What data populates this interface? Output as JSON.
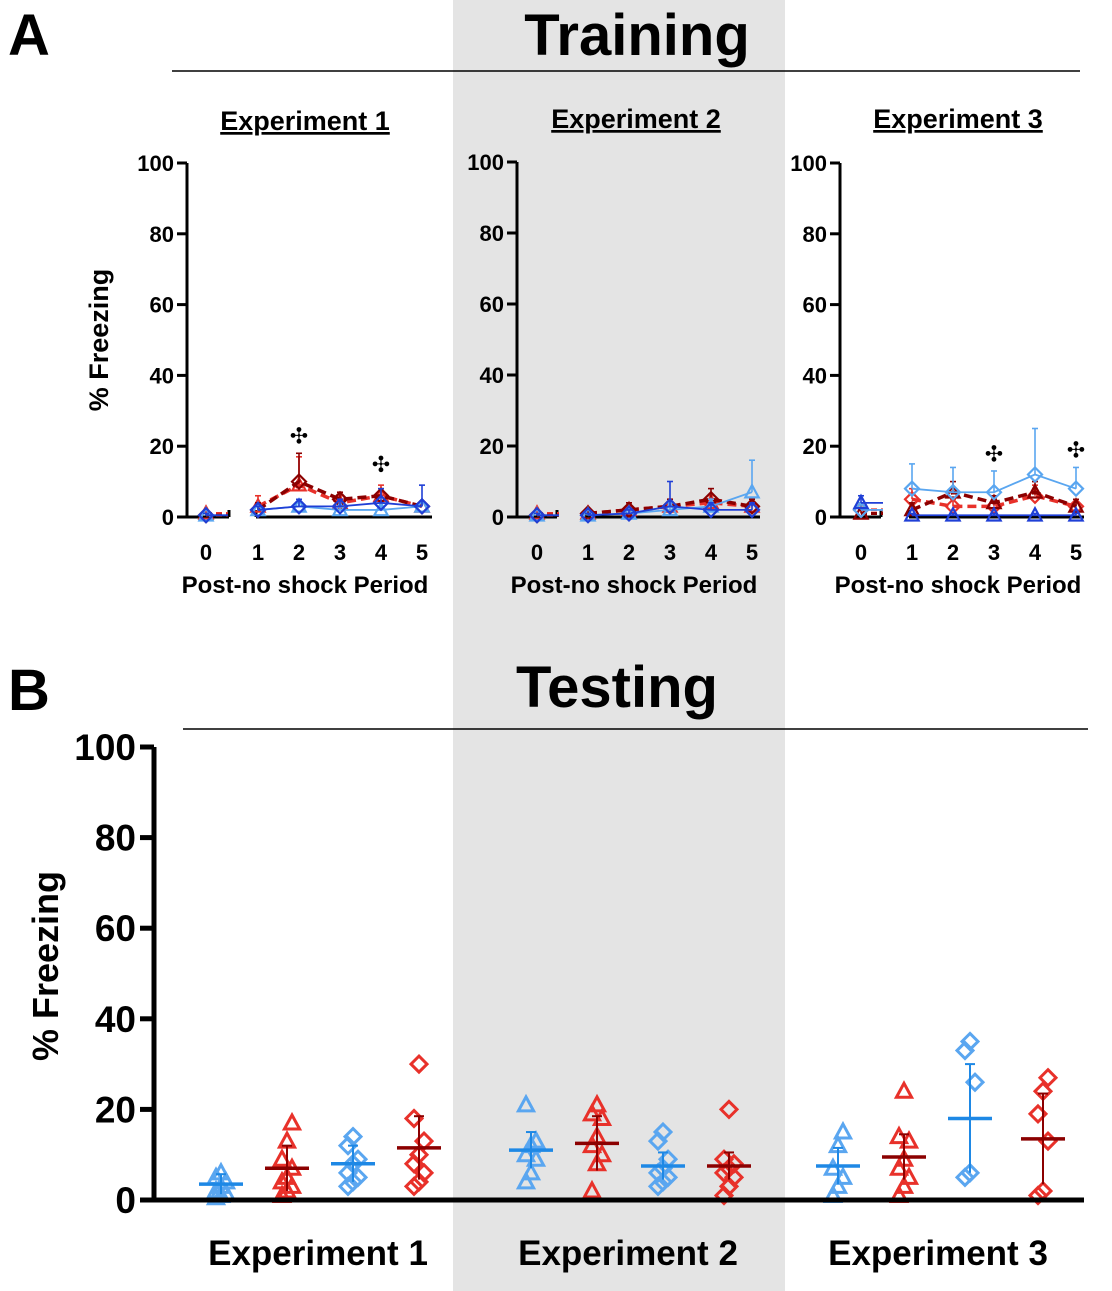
{
  "figure": {
    "panel_a_letter": "A",
    "panel_b_letter": "B",
    "shade_color": "#e4e4e4"
  },
  "chart_data": [
    {
      "type": "line",
      "panel": "A",
      "title": "Training",
      "subtitle": "Experiment 1",
      "xlabel": "Post-no shock Period",
      "ylabel": "% Freezing",
      "ylim": [
        0,
        100
      ],
      "yticks": [
        0,
        20,
        40,
        60,
        80,
        100
      ],
      "x": [
        0,
        1,
        2,
        3,
        4,
        5
      ],
      "annotations": [
        {
          "x": 2,
          "y": 23,
          "text": "✣"
        },
        {
          "x": 4,
          "y": 15,
          "text": "✣"
        }
      ],
      "series": [
        {
          "color": "#e8312a",
          "marker": "triangle",
          "dash": true,
          "values": [
            1,
            3,
            9,
            4,
            6,
            3
          ],
          "err": [
            0.5,
            3,
            8,
            2,
            3,
            1
          ]
        },
        {
          "color": "#8b0000",
          "marker": "diamond",
          "dash": true,
          "values": [
            0.5,
            2,
            10,
            5,
            6,
            3
          ],
          "err": [
            0.5,
            2,
            8,
            2,
            2,
            1
          ]
        },
        {
          "color": "#5aa6f0",
          "marker": "triangle",
          "dash": false,
          "values": [
            0.5,
            2,
            3,
            2,
            2,
            3
          ],
          "err": [
            0.5,
            1,
            2,
            1,
            1,
            1
          ]
        },
        {
          "color": "#1f3fd6",
          "marker": "diamond",
          "dash": false,
          "values": [
            0.5,
            2,
            3,
            3,
            4,
            3
          ],
          "err": [
            0.5,
            1,
            2,
            2,
            4,
            6
          ]
        }
      ]
    },
    {
      "type": "line",
      "panel": "A",
      "subtitle": "Experiment 2",
      "xlabel": "Post-no shock Period",
      "ylim": [
        0,
        100
      ],
      "yticks": [
        0,
        20,
        40,
        60,
        80,
        100
      ],
      "x": [
        0,
        1,
        2,
        3,
        4,
        5
      ],
      "annotations": [],
      "series": [
        {
          "color": "#e8312a",
          "marker": "triangle",
          "dash": true,
          "values": [
            1,
            1,
            2,
            3,
            4,
            3
          ],
          "err": [
            0.5,
            1,
            2,
            2,
            2,
            2
          ]
        },
        {
          "color": "#8b0000",
          "marker": "diamond",
          "dash": true,
          "values": [
            0.5,
            1,
            2,
            3,
            5,
            3
          ],
          "err": [
            0.5,
            1,
            2,
            2,
            3,
            2
          ]
        },
        {
          "color": "#5aa6f0",
          "marker": "triangle",
          "dash": false,
          "values": [
            0.5,
            0.5,
            1,
            2,
            3,
            7
          ],
          "err": [
            0.5,
            0.5,
            1,
            2,
            2,
            9
          ]
        },
        {
          "color": "#1f3fd6",
          "marker": "diamond",
          "dash": false,
          "values": [
            0.5,
            0.5,
            1,
            3,
            2,
            2
          ],
          "err": [
            0.5,
            0.5,
            1,
            7,
            2,
            2
          ]
        }
      ]
    },
    {
      "type": "line",
      "panel": "A",
      "subtitle": "Experiment 3",
      "xlabel": "Post-no shock Period",
      "ylim": [
        0,
        100
      ],
      "yticks": [
        0,
        20,
        40,
        60,
        80,
        100
      ],
      "x": [
        0,
        1,
        2,
        3,
        4,
        5
      ],
      "annotations": [
        {
          "x": 3,
          "y": 18,
          "text": "✣"
        },
        {
          "x": 5,
          "y": 19,
          "text": "✣"
        }
      ],
      "series": [
        {
          "color": "#e8312a",
          "marker": "diamond",
          "dash": true,
          "values": [
            2,
            5,
            3,
            3,
            6,
            3
          ],
          "err": [
            2,
            3,
            2,
            2,
            3,
            2
          ]
        },
        {
          "color": "#8b0000",
          "marker": "triangle",
          "dash": true,
          "values": [
            1,
            2,
            7,
            4,
            7,
            3
          ],
          "err": [
            1,
            2,
            3,
            2,
            3,
            2
          ]
        },
        {
          "color": "#5aa6f0",
          "marker": "diamond",
          "dash": false,
          "values": [
            2,
            8,
            7,
            7,
            12,
            8
          ],
          "err": [
            2,
            7,
            7,
            6,
            13,
            6
          ]
        },
        {
          "color": "#1f3fd6",
          "marker": "triangle",
          "dash": false,
          "values": [
            4,
            0.5,
            0.5,
            0.5,
            0.5,
            0.5
          ],
          "err": [
            2,
            0.5,
            0.5,
            0.5,
            0.5,
            0.5
          ]
        }
      ]
    },
    {
      "type": "scatter",
      "panel": "B",
      "title": "Testing",
      "ylabel": "% Freezing",
      "ylim": [
        0,
        100
      ],
      "yticks": [
        0,
        20,
        40,
        60,
        80,
        100
      ],
      "categories": [
        "Experiment 1",
        "Experiment 2",
        "Experiment 3"
      ],
      "groups": [
        {
          "experiment": 0,
          "slot": 0,
          "color": "#1e88e5",
          "pointColor": "#5aa6f0",
          "marker": "triangle",
          "mean": 3.5,
          "sd": 2.2,
          "points": [
            0.5,
            1,
            1.5,
            2,
            3,
            4,
            5,
            6
          ]
        },
        {
          "experiment": 0,
          "slot": 1,
          "color": "#8b0000",
          "pointColor": "#e8312a",
          "marker": "triangle",
          "mean": 7,
          "sd": 5,
          "points": [
            1,
            2,
            3,
            4,
            5,
            7,
            9,
            13,
            17
          ]
        },
        {
          "experiment": 0,
          "slot": 2,
          "color": "#1e88e5",
          "pointColor": "#5aa6f0",
          "marker": "diamond",
          "mean": 8,
          "sd": 4,
          "points": [
            3,
            4,
            5,
            6,
            8,
            9,
            12,
            14
          ]
        },
        {
          "experiment": 0,
          "slot": 3,
          "color": "#8b0000",
          "pointColor": "#e8312a",
          "marker": "diamond",
          "mean": 11.5,
          "sd": 7,
          "points": [
            3,
            4,
            6,
            8,
            10,
            13,
            18,
            30
          ]
        },
        {
          "experiment": 1,
          "slot": 0,
          "color": "#1e88e5",
          "pointColor": "#5aa6f0",
          "marker": "triangle",
          "mean": 11,
          "sd": 4,
          "points": [
            4,
            6,
            9,
            10,
            12,
            13,
            21
          ]
        },
        {
          "experiment": 1,
          "slot": 1,
          "color": "#8b0000",
          "pointColor": "#e8312a",
          "marker": "triangle",
          "mean": 12.5,
          "sd": 6,
          "points": [
            2,
            8,
            10,
            12,
            14,
            18,
            19,
            21
          ]
        },
        {
          "experiment": 1,
          "slot": 2,
          "color": "#1e88e5",
          "pointColor": "#5aa6f0",
          "marker": "diamond",
          "mean": 7.5,
          "sd": 3,
          "points": [
            3,
            4,
            5,
            6,
            7,
            9,
            13,
            15
          ]
        },
        {
          "experiment": 1,
          "slot": 3,
          "color": "#8b0000",
          "pointColor": "#e8312a",
          "marker": "diamond",
          "mean": 7.5,
          "sd": 3,
          "points": [
            1,
            3,
            5,
            6,
            7,
            8,
            9,
            20
          ]
        },
        {
          "experiment": 2,
          "slot": 0,
          "color": "#1e88e5",
          "pointColor": "#5aa6f0",
          "marker": "triangle",
          "mean": 7.5,
          "sd": 4,
          "points": [
            1,
            3,
            5,
            7,
            12,
            15
          ]
        },
        {
          "experiment": 2,
          "slot": 1,
          "color": "#8b0000",
          "pointColor": "#e8312a",
          "marker": "triangle",
          "mean": 9.5,
          "sd": 5,
          "points": [
            1,
            3,
            5,
            7,
            9,
            13,
            14,
            24
          ]
        },
        {
          "experiment": 2,
          "slot": 2,
          "color": "#1e88e5",
          "pointColor": "#5aa6f0",
          "marker": "diamond",
          "mean": 18,
          "sd": 12,
          "points": [
            5,
            6,
            26,
            33,
            35
          ]
        },
        {
          "experiment": 2,
          "slot": 3,
          "color": "#8b0000",
          "pointColor": "#e8312a",
          "marker": "diamond",
          "mean": 13.5,
          "sd": 10,
          "points": [
            1,
            2,
            13,
            19,
            24,
            27
          ]
        }
      ]
    }
  ]
}
